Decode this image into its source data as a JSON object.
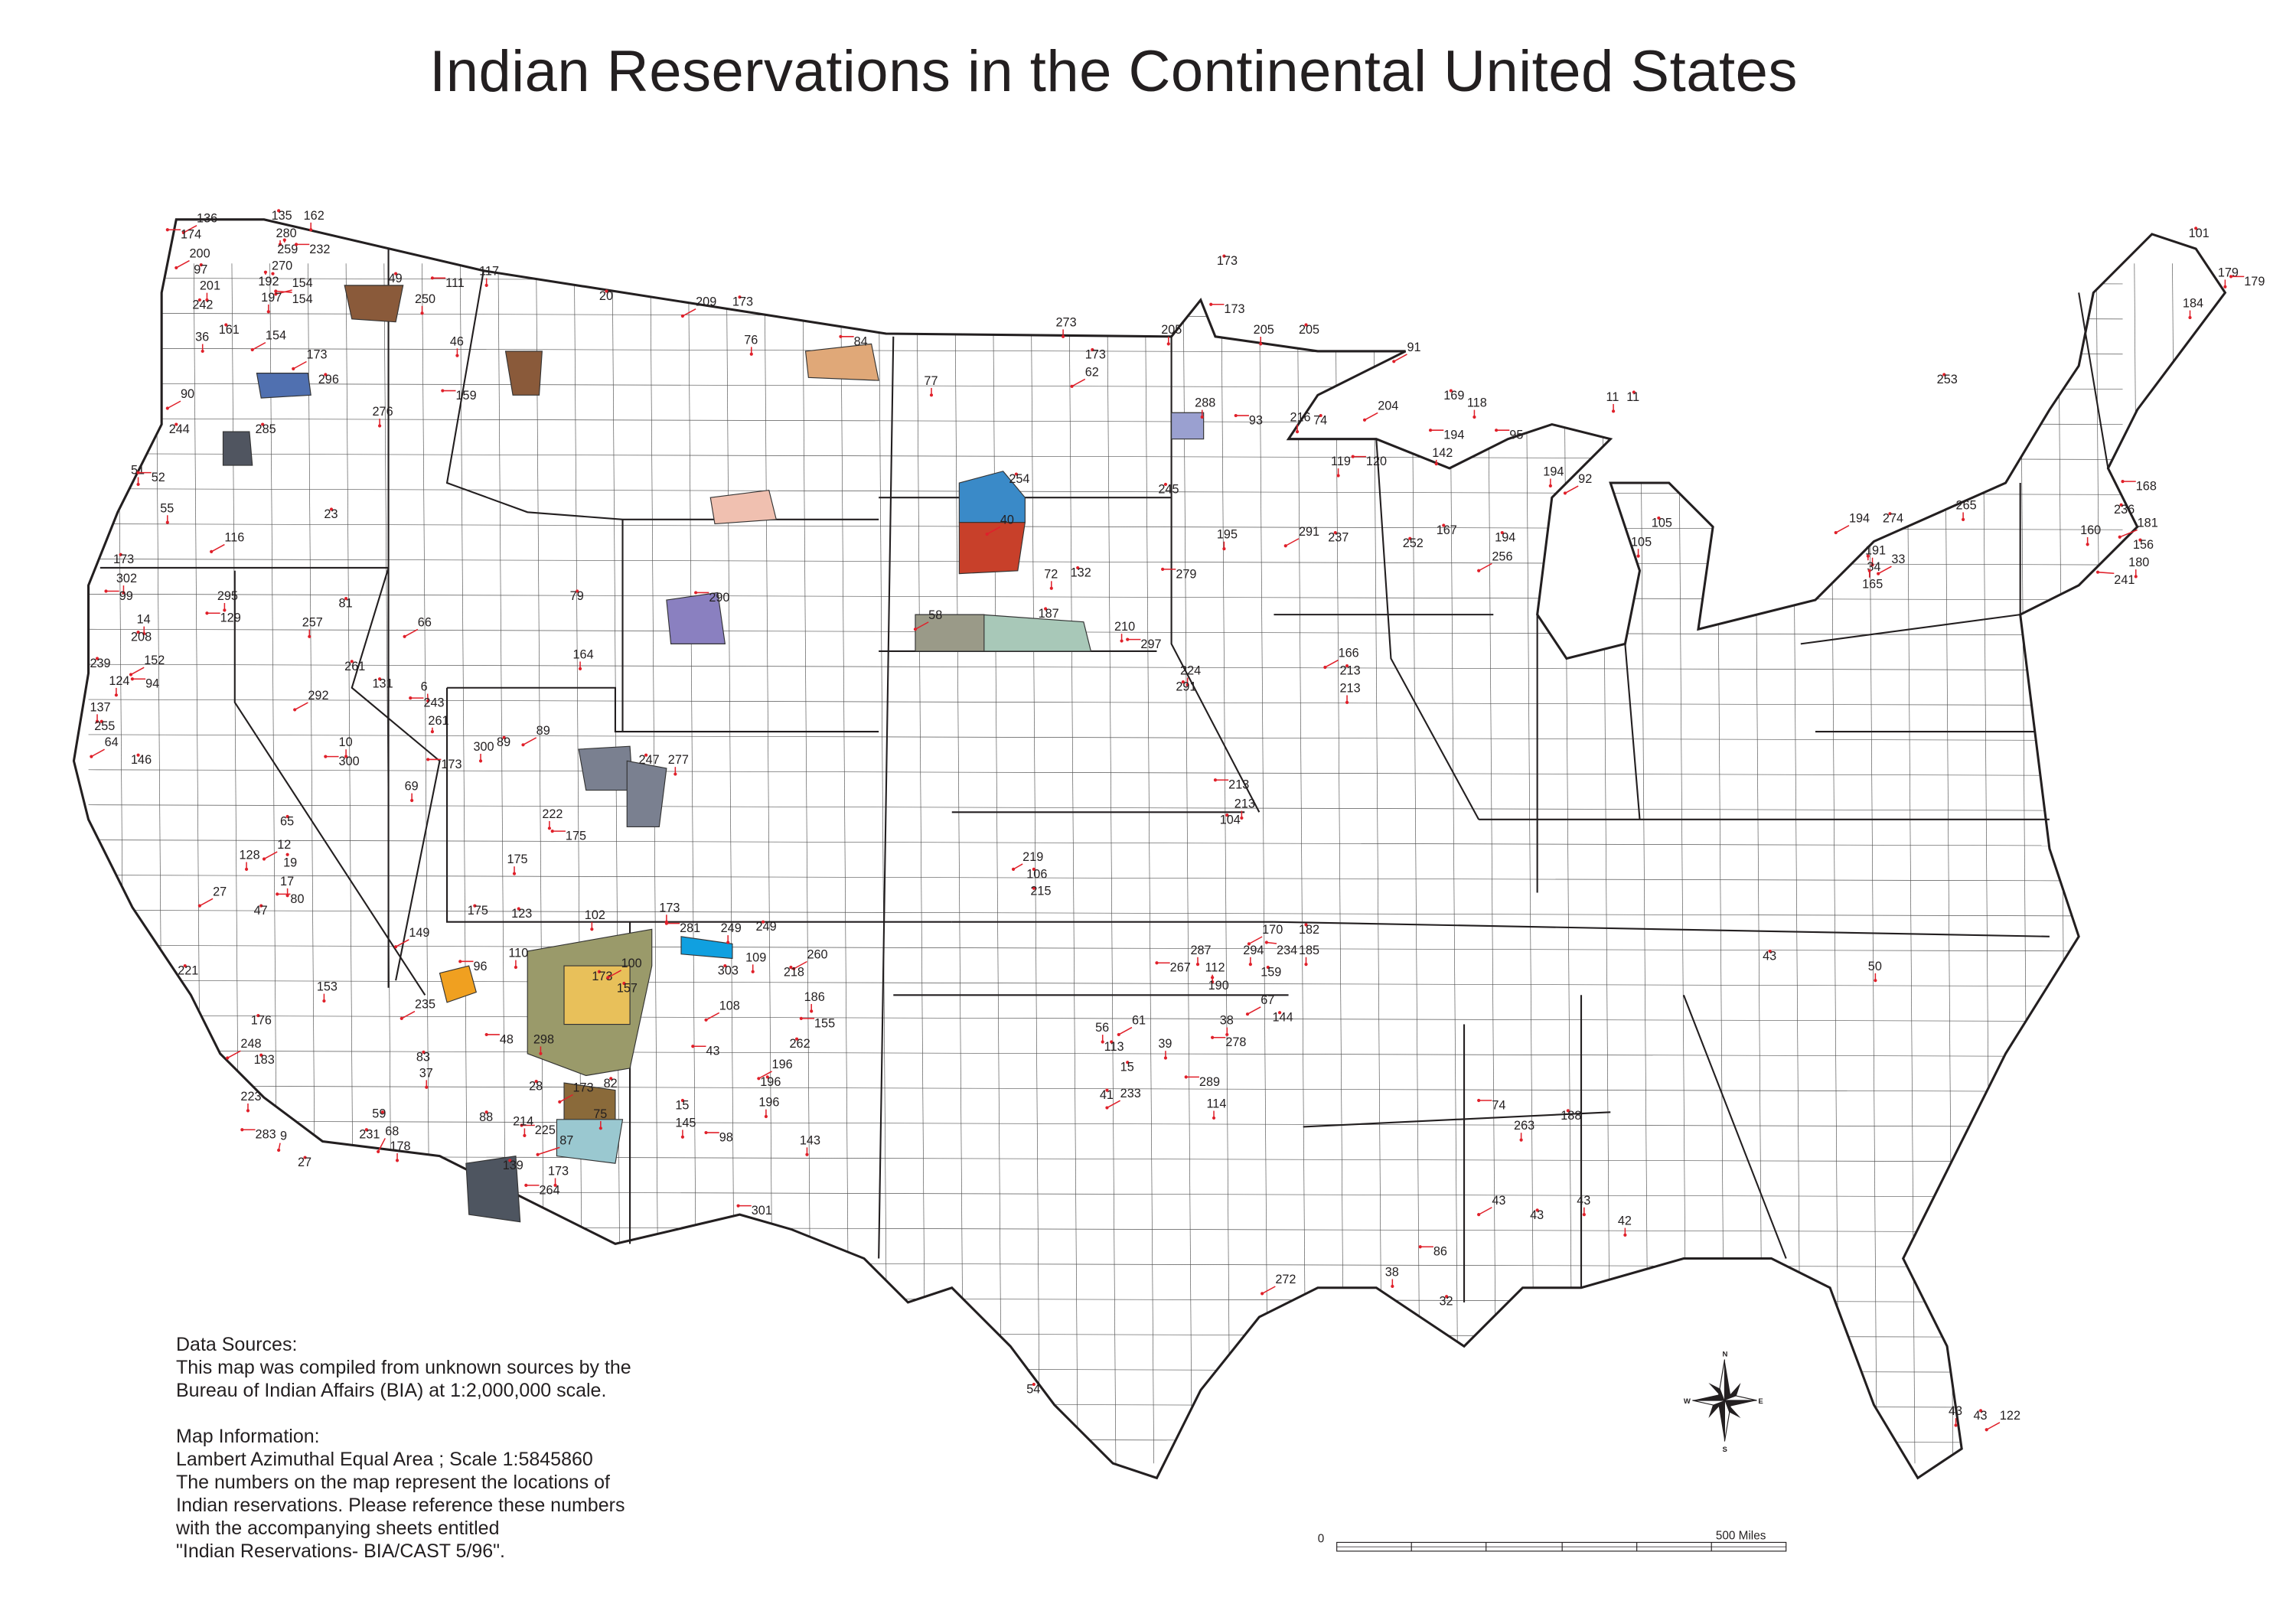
{
  "title": "Indian Reservations in the Continental United States",
  "notes": {
    "data_sources_heading": "Data Sources:",
    "data_sources_line1": "This map was compiled from unknown sources by the",
    "data_sources_line2": "Bureau of Indian Affairs (BIA) at 1:2,000,000 scale.",
    "map_info_heading": "Map Information:",
    "map_info_line1": "Lambert Azimuthal Equal Area ; Scale 1:5845860",
    "map_info_line2": "The numbers on the map represent the locations of",
    "map_info_line3": "Indian reservations. Please reference these numbers",
    "map_info_line4": "with the accompanying sheets entitled",
    "map_info_line5": "\"Indian Reservations- BIA/CAST 5/96\"."
  },
  "scale_bar": {
    "start_label": "0",
    "end_label": "500 Miles"
  },
  "compass": {
    "n": "N",
    "s": "S",
    "e": "E",
    "w": "W"
  },
  "colors": {
    "leader": "#e0202a",
    "boundary": "#231f20"
  },
  "reservation_numbers": [
    "136",
    "135",
    "162",
    "174",
    "280",
    "259",
    "200",
    "97",
    "270",
    "232",
    "201",
    "192",
    "154",
    "242",
    "197",
    "154",
    "36",
    "161",
    "154",
    "49",
    "250",
    "111",
    "117",
    "20",
    "209",
    "173",
    "76",
    "84",
    "273",
    "173",
    "62",
    "173",
    "205",
    "173",
    "205",
    "205",
    "91",
    "101",
    "179",
    "179",
    "184",
    "253",
    "173",
    "296",
    "46",
    "159",
    "276",
    "285",
    "90",
    "244",
    "51",
    "52",
    "55",
    "23",
    "116",
    "173",
    "302",
    "99",
    "14",
    "208",
    "152",
    "239",
    "124",
    "94",
    "137",
    "255",
    "64",
    "146",
    "295",
    "129",
    "257",
    "81",
    "66",
    "79",
    "164",
    "290",
    "77",
    "254",
    "40",
    "245",
    "288",
    "93",
    "216",
    "74",
    "204",
    "169",
    "118",
    "95",
    "11",
    "11",
    "92",
    "105",
    "105",
    "194",
    "194",
    "194",
    "256",
    "167",
    "142",
    "120",
    "119",
    "252",
    "291",
    "237",
    "195",
    "279",
    "72",
    "132",
    "58",
    "187",
    "210",
    "297",
    "224",
    "291",
    "166",
    "213",
    "213",
    "213",
    "213",
    "104",
    "194",
    "274",
    "265",
    "168",
    "160",
    "236",
    "181",
    "156",
    "180",
    "241",
    "191",
    "34",
    "33",
    "165",
    "6",
    "243",
    "261",
    "261",
    "292",
    "131",
    "10",
    "300",
    "300",
    "89",
    "89",
    "247",
    "277",
    "173",
    "69",
    "65",
    "12",
    "19",
    "17",
    "80",
    "128",
    "47",
    "27",
    "221",
    "222",
    "175",
    "175",
    "175",
    "149",
    "123",
    "110",
    "96",
    "102",
    "173",
    "100",
    "157",
    "173",
    "281",
    "249",
    "249",
    "260",
    "218",
    "186",
    "155",
    "109",
    "303",
    "108",
    "262",
    "143",
    "301",
    "153",
    "176",
    "248",
    "183",
    "223",
    "283",
    "9",
    "27",
    "235",
    "83",
    "37",
    "48",
    "298",
    "28",
    "173",
    "82",
    "75",
    "225",
    "214",
    "88",
    "87",
    "139",
    "173",
    "264",
    "178",
    "231",
    "68",
    "59",
    "287",
    "267",
    "112",
    "190",
    "170",
    "182",
    "185",
    "234",
    "294",
    "159",
    "67",
    "144",
    "38",
    "278",
    "56",
    "113",
    "61",
    "15",
    "39",
    "289",
    "114",
    "41",
    "233",
    "43",
    "50",
    "86",
    "38",
    "32",
    "272",
    "54",
    "42",
    "74",
    "263",
    "188",
    "43",
    "43",
    "43",
    "43",
    "43",
    "43",
    "122",
    "15",
    "145",
    "98",
    "196",
    "196",
    "196",
    "106",
    "215",
    "219"
  ]
}
